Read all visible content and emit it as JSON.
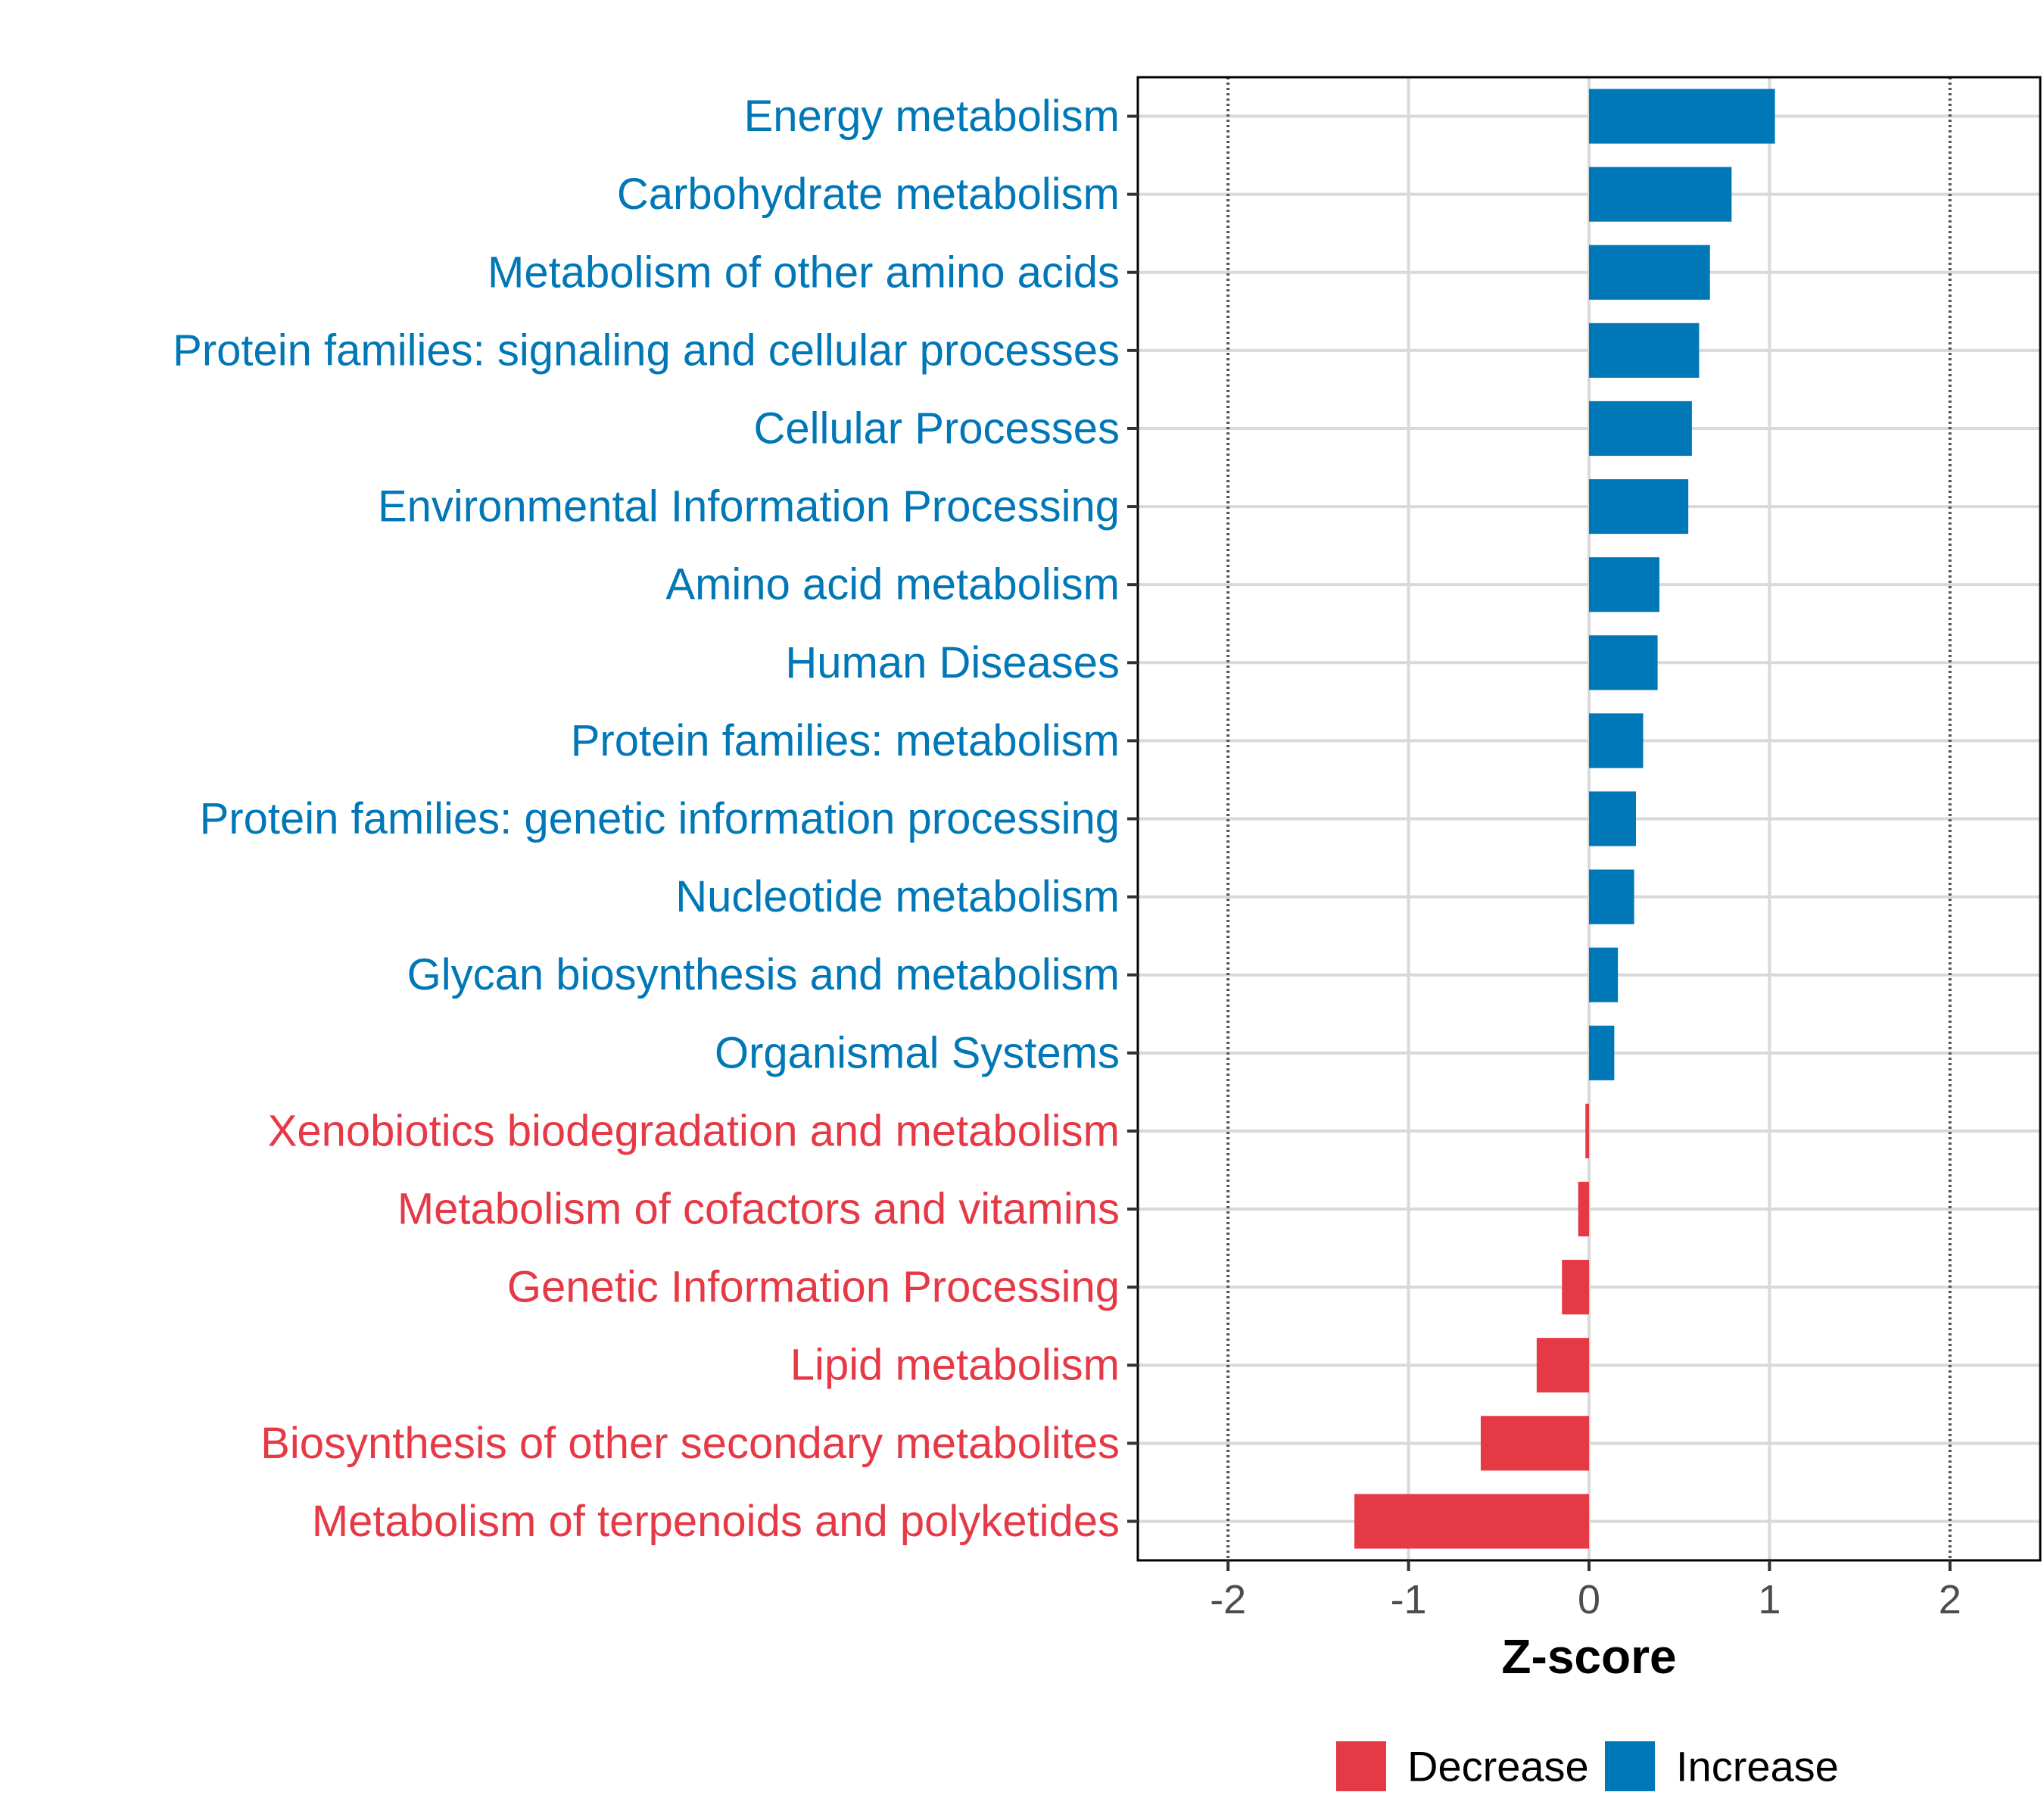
{
  "chart_data": {
    "type": "bar",
    "orientation": "horizontal",
    "title": "",
    "xlabel": "Z-score",
    "ylabel": "",
    "xlim": [
      -2.5,
      2.5
    ],
    "xticks": [
      -2,
      -1,
      0,
      1,
      2
    ],
    "xtick_labels": [
      "-2",
      "-1",
      "0",
      "1",
      "2"
    ],
    "reference_lines": [
      -2,
      2
    ],
    "grid": true,
    "legend_position": "bottom",
    "colors": {
      "Decrease": "#e63946",
      "Increase": "#0077b6"
    },
    "categories": [
      "Energy metabolism",
      "Carbohydrate metabolism",
      "Metabolism of other amino acids",
      "Protein families: signaling and cellular processes",
      "Cellular Processes",
      "Environmental Information Processing",
      "Amino acid metabolism",
      "Human Diseases",
      "Protein families: metabolism",
      "Protein families: genetic information processing",
      "Nucleotide metabolism",
      "Glycan biosynthesis and metabolism",
      "Organismal Systems",
      "Xenobiotics biodegradation and metabolism",
      "Metabolism of cofactors and vitamins",
      "Genetic Information Processing",
      "Lipid metabolism",
      "Biosynthesis of other secondary metabolites",
      "Metabolism of terpenoids and polyketides"
    ],
    "values": [
      1.03,
      0.79,
      0.67,
      0.61,
      0.57,
      0.55,
      0.39,
      0.38,
      0.3,
      0.26,
      0.25,
      0.16,
      0.14,
      -0.02,
      -0.06,
      -0.15,
      -0.29,
      -0.6,
      -1.3
    ],
    "groups": [
      "Increase",
      "Increase",
      "Increase",
      "Increase",
      "Increase",
      "Increase",
      "Increase",
      "Increase",
      "Increase",
      "Increase",
      "Increase",
      "Increase",
      "Increase",
      "Decrease",
      "Decrease",
      "Decrease",
      "Decrease",
      "Decrease",
      "Decrease"
    ],
    "legend": [
      {
        "name": "Decrease",
        "color": "#e63946"
      },
      {
        "name": "Increase",
        "color": "#0077b6"
      }
    ]
  }
}
